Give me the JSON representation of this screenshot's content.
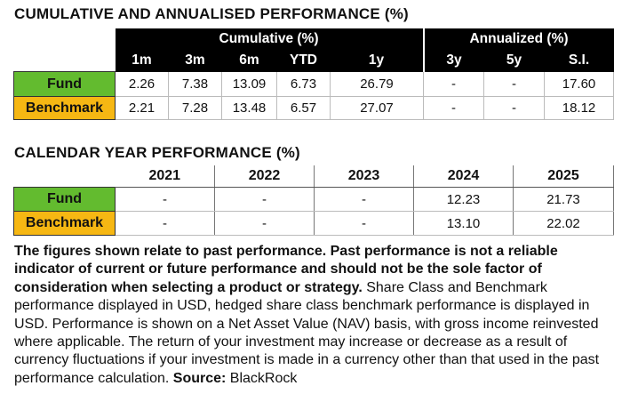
{
  "cumulative_table": {
    "title": "CUMULATIVE AND ANNUALISED PERFORMANCE (%)",
    "group_headers": [
      "Cumulative (%)",
      "Annualized (%)"
    ],
    "columns": [
      "1m",
      "3m",
      "6m",
      "YTD",
      "1y",
      "3y",
      "5y",
      "S.I."
    ],
    "rows": [
      {
        "label": "Fund",
        "values": [
          "2.26",
          "7.38",
          "13.09",
          "6.73",
          "26.79",
          "-",
          "-",
          "17.60"
        ]
      },
      {
        "label": "Benchmark",
        "values": [
          "2.21",
          "7.28",
          "13.48",
          "6.57",
          "27.07",
          "-",
          "-",
          "18.12"
        ]
      }
    ]
  },
  "calendar_table": {
    "title": "CALENDAR YEAR PERFORMANCE (%)",
    "columns": [
      "2021",
      "2022",
      "2023",
      "2024",
      "2025"
    ],
    "rows": [
      {
        "label": "Fund",
        "values": [
          "-",
          "-",
          "-",
          "12.23",
          "21.73"
        ]
      },
      {
        "label": "Benchmark",
        "values": [
          "-",
          "-",
          "-",
          "13.10",
          "22.02"
        ]
      }
    ]
  },
  "footer": {
    "bold_text": "The figures shown relate to past performance. Past performance is not a reliable indicator of current or future performance and should not be the sole factor of consideration when selecting a product or strategy.",
    "text": "Share Class and Benchmark performance displayed in USD, hedged share class benchmark performance is displayed in USD. Performance is shown on a Net Asset Value (NAV) basis, with gross income reinvested where applicable. The return of your investment may increase or decrease as a result of currency fluctuations if your investment is made in a currency other than that used in the past performance calculation.",
    "source_label": "Source:",
    "source": "BlackRock"
  }
}
